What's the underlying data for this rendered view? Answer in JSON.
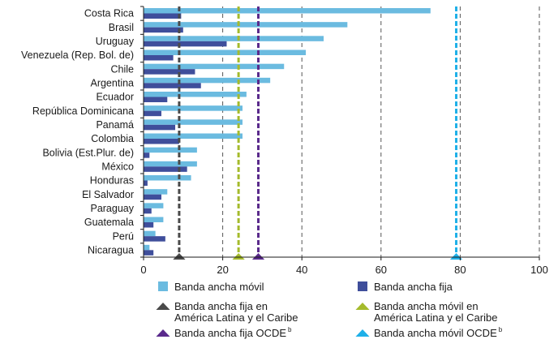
{
  "chart_data": {
    "type": "bar",
    "orientation": "horizontal",
    "categories": [
      "Costa Rica",
      "Brasil",
      "Uruguay",
      "Venezuela (Rep. Bol. de)",
      "Chile",
      "Argentina",
      "Ecuador",
      "República Dominicana",
      "Panamá",
      "Colombia",
      "Bolivia (Est.Plur. de)",
      "México",
      "Honduras",
      "El Salvador",
      "Paraguay",
      "Guatemala",
      "Perú",
      "Nicaragua"
    ],
    "series": [
      {
        "name": "Banda ancha móvil",
        "color": "#6bbbe0",
        "values": [
          72.5,
          51.5,
          45.5,
          41,
          35.5,
          32,
          26,
          25,
          25,
          25,
          13.5,
          13.5,
          12,
          6,
          5,
          5,
          3,
          1.5
        ]
      },
      {
        "name": "Banda ancha fija",
        "color": "#3f4e9b",
        "values": [
          9.5,
          10,
          21,
          7.5,
          13,
          14.5,
          6,
          4.5,
          8,
          9,
          1.5,
          11,
          1,
          4.5,
          2,
          2.5,
          5.5,
          2.5
        ]
      }
    ],
    "reference_lines": [
      {
        "name": "Banda ancha fija en América Latina y el Caribe",
        "value": 9,
        "color": "#4a4a4a",
        "marker": "triangle"
      },
      {
        "name": "Banda ancha móvil en América Latina y el Caribe",
        "value": 24,
        "color": "#a5bb2c",
        "marker": "triangle"
      },
      {
        "name": "Banda ancha fija OCDE",
        "superscript": "b",
        "value": 29,
        "color": "#5a2a8c",
        "marker": "triangle"
      },
      {
        "name": "Banda ancha móvil OCDE",
        "superscript": "b",
        "value": 79,
        "color": "#1fb0e8",
        "marker": "triangle"
      }
    ],
    "xlim": [
      0,
      100
    ],
    "xticks": [
      "0",
      "20",
      "40",
      "60",
      "80",
      "100"
    ],
    "xlabel": "",
    "ylabel": "",
    "title": "",
    "grid": "vertical dashed",
    "legend": {
      "placement": "bottom",
      "items": [
        {
          "label": "Banda ancha móvil",
          "type": "square",
          "color": "#6bbbe0"
        },
        {
          "label": "Banda ancha fija",
          "type": "square",
          "color": "#3f4e9b"
        },
        {
          "label": "Banda ancha fija en\nAmérica Latina y el Caribe",
          "type": "triangle",
          "color": "#4a4a4a"
        },
        {
          "label": "Banda ancha móvil en\nAmérica Latina y el Caribe",
          "type": "triangle",
          "color": "#a5bb2c"
        },
        {
          "label": "Banda ancha fija OCDE",
          "sup": "b",
          "type": "triangle",
          "color": "#5a2a8c"
        },
        {
          "label": "Banda ancha móvil OCDE",
          "sup": "b",
          "type": "triangle",
          "color": "#1fb0e8"
        }
      ]
    }
  }
}
